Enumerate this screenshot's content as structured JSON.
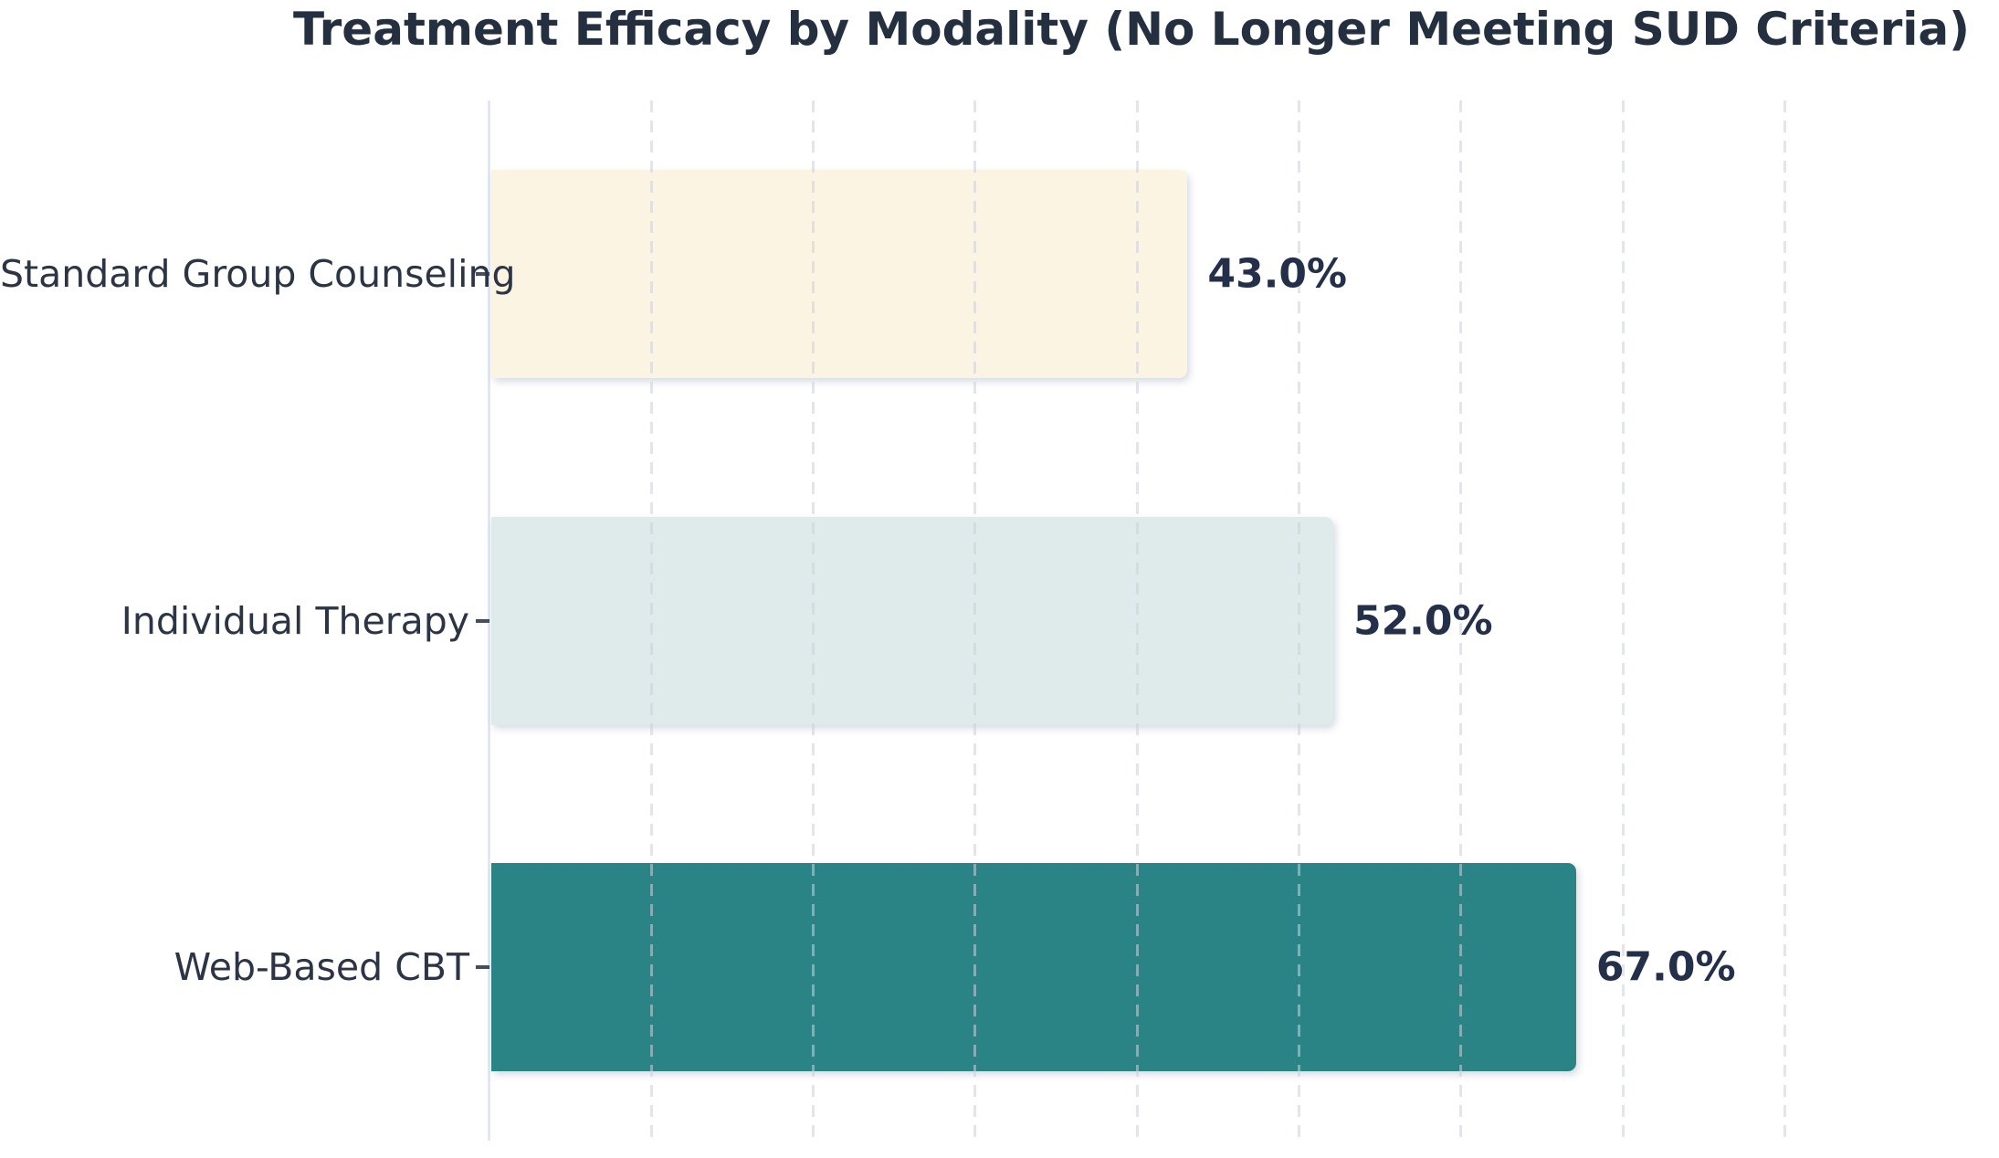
{
  "title": "Treatment Efficacy by Modality (No Longer Meeting SUD Criteria)",
  "chart_data": {
    "type": "bar",
    "orientation": "horizontal",
    "title": "Treatment Efficacy by Modality (No Longer Meeting SUD Criteria)",
    "xlabel": "",
    "ylabel": "",
    "xlim": [
      0,
      80.4
    ],
    "grid": {
      "axis": "x",
      "style": "dashed",
      "ticks_pct": [
        10,
        20,
        30,
        40,
        50,
        60,
        70,
        80
      ]
    },
    "categories": [
      "Standard Group Counseling",
      "Individual Therapy",
      "Web-Based CBT"
    ],
    "values": [
      43.0,
      52.0,
      67.0
    ],
    "bars": [
      {
        "label": "Standard Group Counseling",
        "value": 43.0,
        "value_label": "43.0%",
        "color": "#FBF4E3"
      },
      {
        "label": "Individual Therapy",
        "value": 52.0,
        "value_label": "52.0%",
        "color": "#DEEBEA"
      },
      {
        "label": "Web-Based CBT",
        "value": 67.0,
        "value_label": "67.0%",
        "color": "#2A8486"
      }
    ],
    "colors": {
      "title_text": "#242F40",
      "category_text": "#2C3545",
      "value_text": "#24304A",
      "axis_line": "#E2E7F0",
      "tick": "#454E5E",
      "background": "#FFFFFF"
    },
    "legend": null
  }
}
